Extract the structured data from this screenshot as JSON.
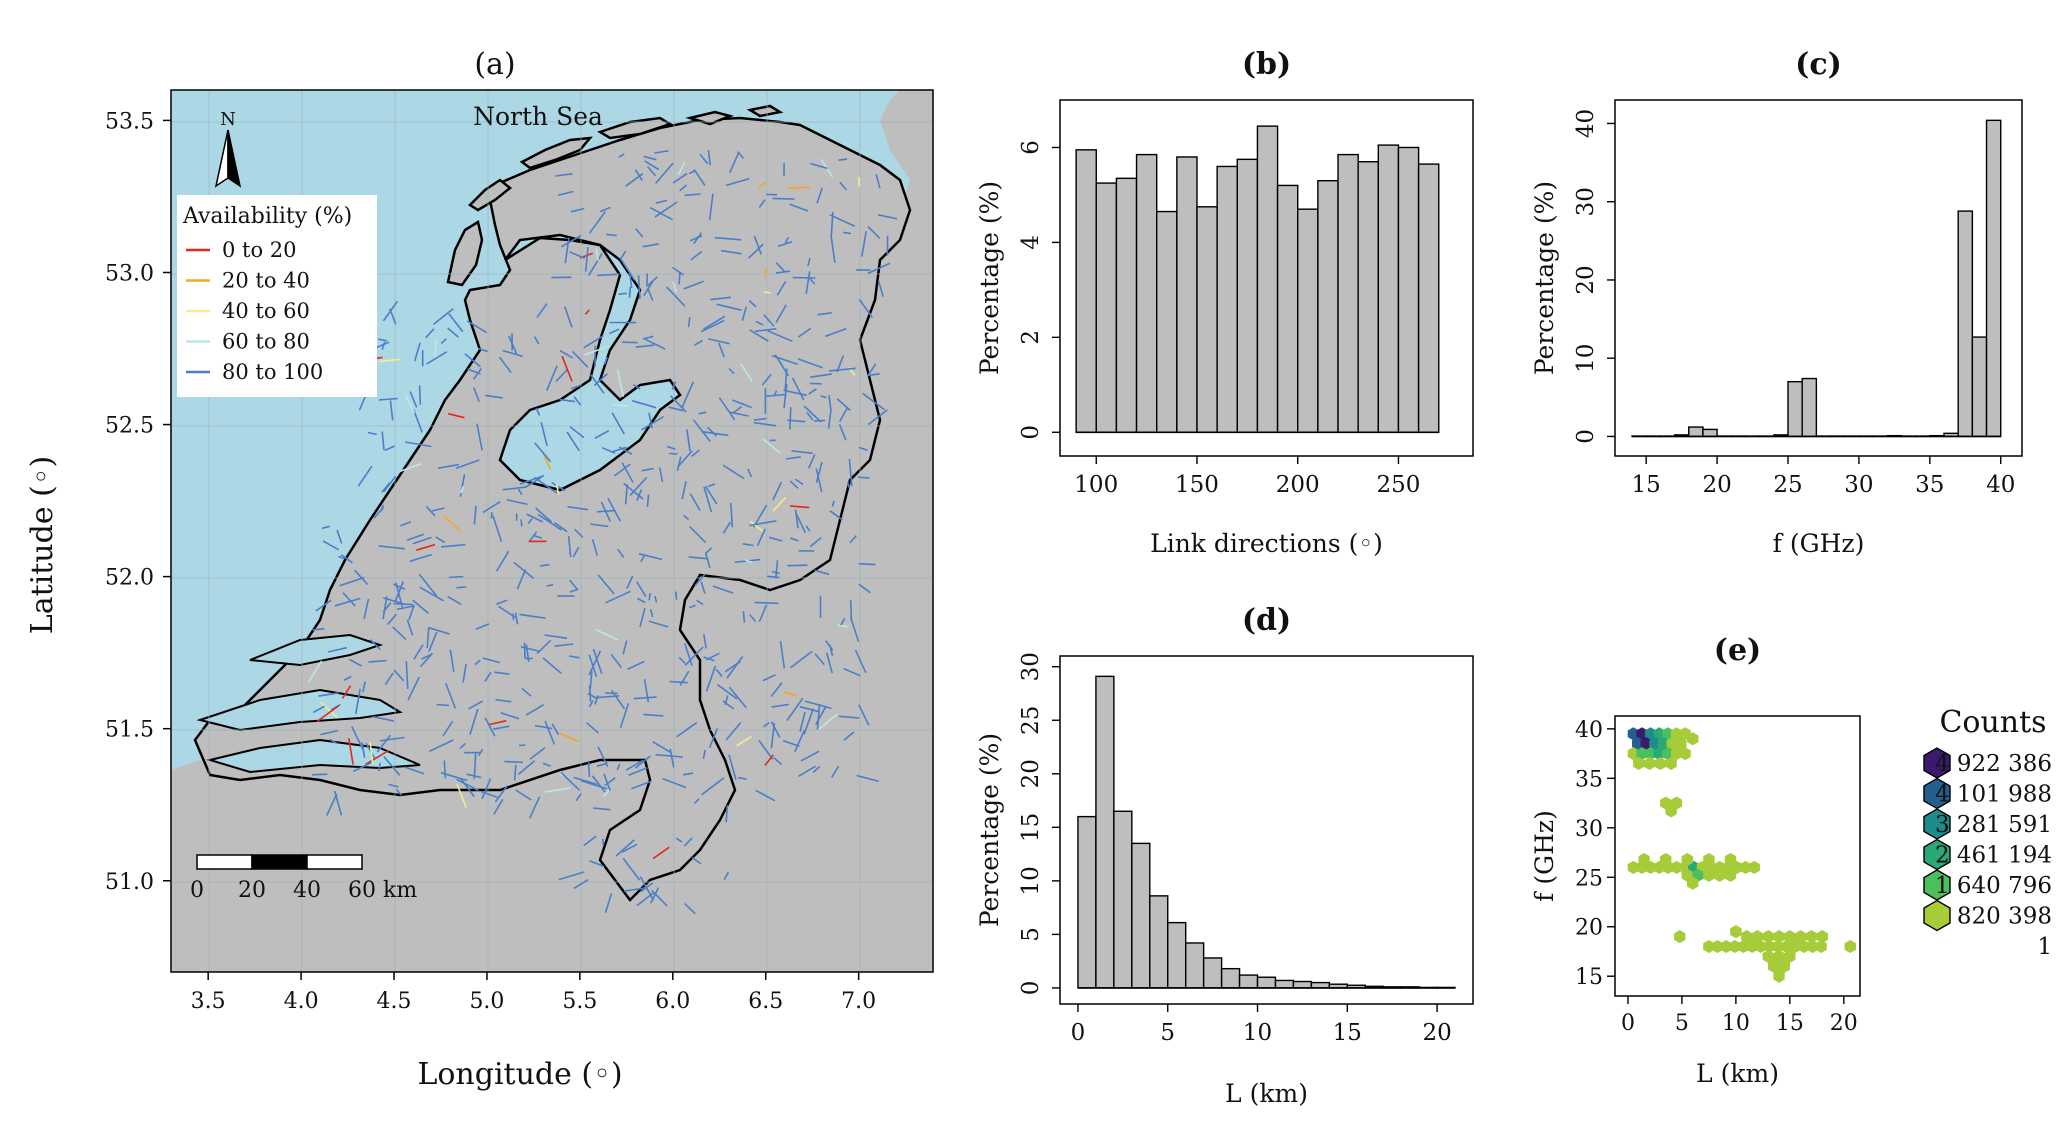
{
  "figure": {
    "panels": [
      "(a)",
      "(b)",
      "(c)",
      "(d)",
      "(e)"
    ]
  },
  "map": {
    "panel_label": "(a)",
    "sea_label": "North Sea",
    "north_label": "N",
    "xlabel": "Longitude (◦)",
    "ylabel": "Latitude (◦)",
    "x_ticks": [
      "3.5",
      "4.0",
      "4.5",
      "5.0",
      "5.5",
      "6.0",
      "6.5",
      "7.0"
    ],
    "y_ticks": [
      "51.0",
      "51.5",
      "52.0",
      "52.5",
      "53.0",
      "53.5"
    ],
    "xlim": [
      3.3,
      7.4
    ],
    "ylim": [
      50.7,
      53.6
    ],
    "legend_title": "Availability (%)",
    "legend": [
      {
        "label": "0 to 20",
        "color": "#e0281e"
      },
      {
        "label": "20 to 40",
        "color": "#f5a623"
      },
      {
        "label": "40 to 60",
        "color": "#f4ed8c"
      },
      {
        "label": "60 to 80",
        "color": "#bde7e7"
      },
      {
        "label": "80 to 100",
        "color": "#4a7fc8"
      }
    ],
    "scale_labels": [
      "0",
      "20",
      "40",
      "60 km"
    ],
    "colors": {
      "sea": "#acd8e6",
      "land": "#bebebe",
      "border": "#000000",
      "grid": "#9fb4bd"
    }
  },
  "chart_data": [
    {
      "panel": "(b)",
      "type": "bar",
      "xlabel": "Link directions (◦)",
      "ylabel": "Percentage (%)",
      "x_ticks": [
        "100",
        "150",
        "200",
        "250"
      ],
      "y_ticks": [
        "0",
        "2",
        "4",
        "6"
      ],
      "xlim": [
        82,
        287
      ],
      "ylim": [
        -0.5,
        7.0
      ],
      "bin_width": 10,
      "bin_starts": [
        90,
        100,
        110,
        120,
        130,
        140,
        150,
        160,
        170,
        180,
        190,
        200,
        210,
        220,
        230,
        240,
        250,
        260
      ],
      "values": [
        5.95,
        5.25,
        5.35,
        5.85,
        4.65,
        5.8,
        4.75,
        5.6,
        5.75,
        6.45,
        5.2,
        4.7,
        5.3,
        5.85,
        5.7,
        6.05,
        6.0,
        5.65
      ]
    },
    {
      "panel": "(c)",
      "type": "bar",
      "xlabel": "f (GHz)",
      "ylabel": "Percentage (%)",
      "x_ticks": [
        "15",
        "20",
        "25",
        "30",
        "35",
        "40"
      ],
      "y_ticks": [
        "0",
        "10",
        "20",
        "30",
        "40"
      ],
      "xlim": [
        12.8,
        41.5
      ],
      "ylim": [
        -2.5,
        43
      ],
      "bin_width": 1,
      "bin_starts": [
        14,
        15,
        16,
        17,
        18,
        19,
        20,
        21,
        22,
        23,
        24,
        25,
        26,
        27,
        28,
        29,
        30,
        31,
        32,
        33,
        34,
        35,
        36,
        37,
        38,
        39
      ],
      "values": [
        0.05,
        0.05,
        0.05,
        0.2,
        1.2,
        0.9,
        0.05,
        0.05,
        0.05,
        0.05,
        0.2,
        7.0,
        7.4,
        0.05,
        0.05,
        0.05,
        0.05,
        0.05,
        0.1,
        0.05,
        0.05,
        0.1,
        0.4,
        28.8,
        12.7,
        40.4
      ]
    },
    {
      "panel": "(d)",
      "type": "bar",
      "xlabel": "L (km)",
      "ylabel": "Percentage (%)",
      "x_ticks": [
        "0",
        "5",
        "10",
        "15",
        "20"
      ],
      "y_ticks": [
        "0",
        "5",
        "10",
        "15",
        "20",
        "25",
        "30"
      ],
      "xlim": [
        -1,
        22
      ],
      "ylim": [
        -1.5,
        31
      ],
      "bin_width": 1,
      "bin_starts": [
        0,
        1,
        2,
        3,
        4,
        5,
        6,
        7,
        8,
        9,
        10,
        11,
        12,
        13,
        14,
        15,
        16,
        17,
        18,
        19,
        20
      ],
      "values": [
        16.0,
        29.1,
        16.5,
        13.5,
        8.6,
        6.1,
        4.2,
        2.8,
        1.8,
        1.2,
        1.0,
        0.7,
        0.6,
        0.5,
        0.35,
        0.25,
        0.15,
        0.1,
        0.1,
        0.05,
        0.05
      ]
    },
    {
      "panel": "(e)",
      "type": "heatmap",
      "xlabel": "L (km)",
      "ylabel": "f (GHz)",
      "x_ticks": [
        "0",
        "5",
        "10",
        "15",
        "20"
      ],
      "y_ticks": [
        "15",
        "20",
        "25",
        "30",
        "35",
        "40"
      ],
      "xlim": [
        -1.2,
        21.5
      ],
      "ylim": [
        13,
        41.3
      ],
      "legend_title": "Counts",
      "legend_labels": [
        "4 922 386",
        "4 101 988",
        "3 281 591",
        "2 461 194",
        "1 640 796",
        "820 398",
        "1"
      ],
      "legend_colors": [
        "#3b1a6e",
        "#23608d",
        "#1f8c8a",
        "#2aa876",
        "#4bbf5e",
        "#a6cc3a",
        "#a6cc3a"
      ],
      "cells": [
        [
          0.5,
          39.5,
          1
        ],
        [
          1.3,
          39.5,
          0
        ],
        [
          2.1,
          39.5,
          2
        ],
        [
          2.9,
          39.5,
          3
        ],
        [
          3.7,
          39.5,
          4
        ],
        [
          4.5,
          39.5,
          5
        ],
        [
          5.3,
          39.5,
          5
        ],
        [
          6.0,
          39.0,
          5
        ],
        [
          0.9,
          38.5,
          1
        ],
        [
          1.7,
          38.5,
          0
        ],
        [
          2.5,
          38.5,
          2
        ],
        [
          3.3,
          38.5,
          3
        ],
        [
          4.1,
          38.5,
          5
        ],
        [
          4.9,
          38.5,
          5
        ],
        [
          0.5,
          37.5,
          5
        ],
        [
          1.3,
          37.5,
          4
        ],
        [
          2.1,
          37.5,
          4
        ],
        [
          2.9,
          37.5,
          3
        ],
        [
          3.7,
          37.5,
          4
        ],
        [
          4.5,
          37.5,
          5
        ],
        [
          5.3,
          37.5,
          5
        ],
        [
          1.0,
          36.5,
          5
        ],
        [
          2.0,
          36.5,
          5
        ],
        [
          3.0,
          36.5,
          5
        ],
        [
          4.0,
          36.5,
          5
        ],
        [
          3.5,
          32.5,
          5
        ],
        [
          4.5,
          32.5,
          5
        ],
        [
          4.0,
          31.7,
          5
        ],
        [
          0.5,
          26.0,
          5
        ],
        [
          1.3,
          26.0,
          5
        ],
        [
          2.1,
          26.0,
          5
        ],
        [
          2.9,
          26.0,
          5
        ],
        [
          3.7,
          26.0,
          5
        ],
        [
          4.5,
          26.0,
          5
        ],
        [
          5.3,
          26.0,
          5
        ],
        [
          6.1,
          26.0,
          3
        ],
        [
          6.9,
          26.0,
          5
        ],
        [
          7.7,
          26.0,
          5
        ],
        [
          8.5,
          26.0,
          5
        ],
        [
          9.3,
          26.0,
          5
        ],
        [
          10.1,
          26.0,
          5
        ],
        [
          10.9,
          26.0,
          5
        ],
        [
          11.7,
          26.0,
          5
        ],
        [
          1.5,
          26.8,
          5
        ],
        [
          3.5,
          26.8,
          5
        ],
        [
          5.5,
          26.8,
          5
        ],
        [
          7.5,
          26.8,
          5
        ],
        [
          9.5,
          26.8,
          5
        ],
        [
          5.5,
          25.2,
          5
        ],
        [
          6.5,
          25.2,
          4
        ],
        [
          7.5,
          25.2,
          5
        ],
        [
          8.5,
          25.2,
          5
        ],
        [
          9.5,
          25.2,
          5
        ],
        [
          6.0,
          24.4,
          5
        ],
        [
          4.8,
          19.0,
          5
        ],
        [
          7.5,
          18.0,
          5
        ],
        [
          8.3,
          18.0,
          5
        ],
        [
          9.1,
          18.0,
          5
        ],
        [
          9.9,
          18.0,
          5
        ],
        [
          10.7,
          18.0,
          5
        ],
        [
          11.5,
          18.0,
          5
        ],
        [
          12.3,
          18.0,
          5
        ],
        [
          13.1,
          18.0,
          5
        ],
        [
          13.9,
          18.0,
          5
        ],
        [
          14.7,
          18.0,
          5
        ],
        [
          15.5,
          18.0,
          5
        ],
        [
          16.3,
          18.0,
          5
        ],
        [
          17.1,
          18.0,
          5
        ],
        [
          17.9,
          18.0,
          5
        ],
        [
          20.6,
          18.0,
          5
        ],
        [
          10.0,
          19.5,
          5
        ],
        [
          11.0,
          19.0,
          5
        ],
        [
          12.0,
          19.0,
          5
        ],
        [
          13.0,
          19.0,
          5
        ],
        [
          14.0,
          19.0,
          5
        ],
        [
          15.0,
          19.0,
          5
        ],
        [
          16.0,
          19.0,
          5
        ],
        [
          17.0,
          19.0,
          5
        ],
        [
          18.0,
          19.0,
          5
        ],
        [
          13.0,
          17.0,
          5
        ],
        [
          14.0,
          17.0,
          5
        ],
        [
          15.0,
          17.0,
          5
        ],
        [
          13.5,
          16.0,
          5
        ],
        [
          14.5,
          16.0,
          5
        ],
        [
          14.0,
          15.0,
          5
        ]
      ]
    }
  ]
}
